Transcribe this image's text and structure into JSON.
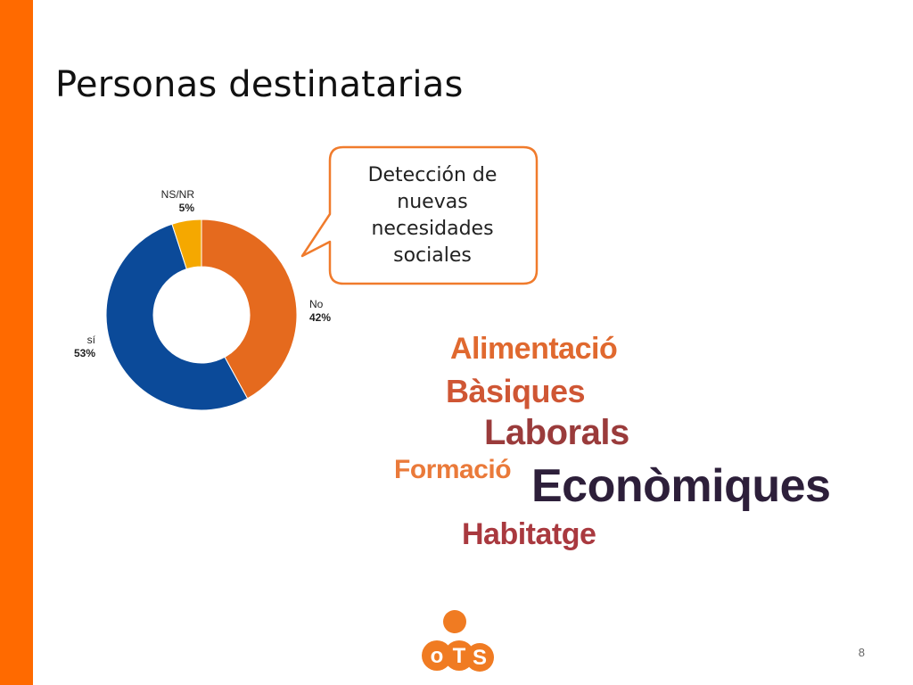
{
  "slide": {
    "title": "Personas destinatarias",
    "page_number": "8",
    "accent_color": "#ff6a00"
  },
  "chart_data": {
    "type": "pie",
    "variant": "donut",
    "start": "top, clockwise",
    "slices": [
      {
        "label": "No",
        "value": 42,
        "value_text": "42%",
        "color": "#e56a1e"
      },
      {
        "label": "sí",
        "value": 53,
        "value_text": "53%",
        "color": "#0b4a99"
      },
      {
        "label": "NS/NR",
        "value": 5,
        "value_text": "5%",
        "color": "#f5a800"
      }
    ]
  },
  "callout": {
    "lines": [
      "Detección de",
      "nuevas",
      "necesidades",
      "sociales"
    ],
    "border_color": "#f07b2c"
  },
  "wordcloud": {
    "words": [
      {
        "text": "Alimentació",
        "color": "#e0692f"
      },
      {
        "text": "Bàsiques",
        "color": "#cf5634"
      },
      {
        "text": "Laborals",
        "color": "#9a3b3b"
      },
      {
        "text": "Formació",
        "color": "#ea7a3a"
      },
      {
        "text": "Econòmiques",
        "color": "#2d1f3a"
      },
      {
        "text": "Habitatge",
        "color": "#a9393f"
      }
    ]
  },
  "logo": {
    "text_o": "o",
    "text_t": "T",
    "text_s": "S",
    "color": "#f07b22"
  }
}
